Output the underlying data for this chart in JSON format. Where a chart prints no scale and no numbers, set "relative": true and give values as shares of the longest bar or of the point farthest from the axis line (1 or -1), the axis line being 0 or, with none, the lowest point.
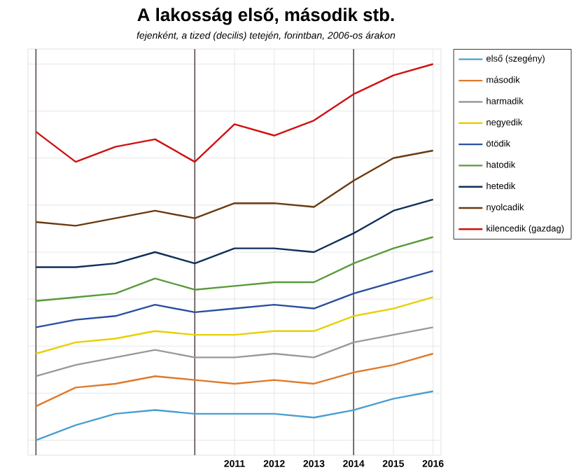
{
  "chart_data": {
    "type": "line",
    "title": "A lakosság első, második stb.",
    "subtitle": "fejenként, a tized (decilis) tetején, forintban, 2006-os árakon",
    "x": [
      2006,
      2007,
      2008,
      2009,
      2010,
      2011,
      2012,
      2013,
      2014,
      2015,
      2016
    ],
    "xlim": [
      2005.8,
      2016.2
    ],
    "xticks": [
      2011,
      2012,
      2013,
      2014,
      2015,
      2016
    ],
    "relative": true,
    "grid": true,
    "legend": "right",
    "marker": "none",
    "line_style": "solid",
    "ref_lines": [
      {
        "axis": "x",
        "value": 2006,
        "color": "#5a4a4a"
      },
      {
        "axis": "x",
        "value": 2010,
        "color": "#5a4a4a"
      },
      {
        "axis": "x",
        "value": 2014,
        "color": "#5a4a4a"
      }
    ],
    "series": [
      {
        "name": "első (szegény)",
        "color": "#4a9fd0",
        "values": [
          0,
          0.04,
          0.07,
          0.08,
          0.07,
          0.07,
          0.07,
          0.06,
          0.08,
          0.11,
          0.13
        ]
      },
      {
        "name": "második",
        "color": "#e07a2a",
        "values": [
          0.09,
          0.14,
          0.15,
          0.17,
          0.16,
          0.15,
          0.16,
          0.15,
          0.18,
          0.2,
          0.23
        ]
      },
      {
        "name": "harmadik",
        "color": "#999999",
        "values": [
          0.17,
          0.2,
          0.22,
          0.24,
          0.22,
          0.22,
          0.23,
          0.22,
          0.26,
          0.28,
          0.3
        ]
      },
      {
        "name": "negyedik",
        "color": "#e8d000",
        "values": [
          0.23,
          0.26,
          0.27,
          0.29,
          0.28,
          0.28,
          0.29,
          0.29,
          0.33,
          0.35,
          0.38
        ]
      },
      {
        "name": "ötödik",
        "color": "#2a4fa0",
        "values": [
          0.3,
          0.32,
          0.33,
          0.36,
          0.34,
          0.35,
          0.36,
          0.35,
          0.39,
          0.42,
          0.45
        ]
      },
      {
        "name": "hatodik",
        "color": "#5a9a3a",
        "values": [
          0.37,
          0.38,
          0.39,
          0.43,
          0.4,
          0.41,
          0.42,
          0.42,
          0.47,
          0.51,
          0.54
        ]
      },
      {
        "name": "hetedik",
        "color": "#0f2f5a",
        "values": [
          0.46,
          0.46,
          0.47,
          0.5,
          0.47,
          0.51,
          0.51,
          0.5,
          0.55,
          0.61,
          0.64
        ]
      },
      {
        "name": "nyolcadik",
        "color": "#6b3a10",
        "values": [
          0.58,
          0.57,
          0.59,
          0.61,
          0.59,
          0.63,
          0.63,
          0.62,
          0.69,
          0.75,
          0.77
        ]
      },
      {
        "name": "kilencedik (gazdag)",
        "color": "#d01010",
        "values": [
          0.82,
          0.74,
          0.78,
          0.8,
          0.74,
          0.84,
          0.81,
          0.85,
          0.92,
          0.97,
          1.0
        ]
      }
    ]
  }
}
